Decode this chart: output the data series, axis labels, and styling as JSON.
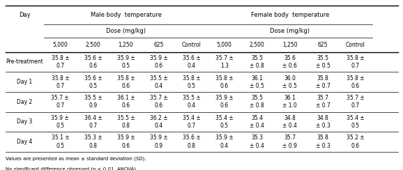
{
  "title": "",
  "col_header_row1": [
    "Day",
    "Male body temperature",
    "",
    "",
    "",
    "",
    "Female body temperature",
    "",
    "",
    "",
    ""
  ],
  "col_header_row2": [
    "",
    "Dose (mg/kg)",
    "",
    "",
    "",
    "",
    "Dose (mg/kg)",
    "",
    "",
    "",
    ""
  ],
  "col_header_row3": [
    "",
    "5,000",
    "2,500",
    "1,250",
    "625",
    "Control",
    "5,000",
    "2,500",
    "1,250",
    "625",
    "Control"
  ],
  "rows": [
    {
      "label": "Pre-treatment",
      "values": [
        "35.8 ±\n0.7",
        "35.6 ±\n0.6",
        "35.9 ±\n0.5",
        "35.9 ±\n0.6",
        "35.6 ±\n0.4",
        "35.7 ±\n1.3",
        "35.5\n± 0.8",
        "35.6\n± 0.6",
        "35.5\n± 0.5",
        "35.8 ±\n0.7"
      ]
    },
    {
      "label": "Day 1",
      "values": [
        "35.8 ±\n0.7",
        "35.6 ±\n0.5",
        "35.8 ±\n0.6",
        "35.5 ±\n0.4",
        "35.8 ±\n0.5",
        "35.8 ±\n0.6",
        "36.1\n± 0.5",
        "36.0\n± 0.5",
        "35.8\n± 0.7",
        "35.8 ±\n0.6"
      ]
    },
    {
      "label": "Day 2",
      "values": [
        "35.7 ±\n0.7",
        "35.5 ±\n0.9",
        "36.1 ±\n0.6",
        "35.7 ±\n0.6",
        "35.5 ±\n0.4",
        "35.9 ±\n0.6",
        "35.5\n± 0.8",
        "36.1\n± 1.0",
        "35.7\n± 0.7",
        "35.7 ±\n0.7"
      ]
    },
    {
      "label": "Day 3",
      "values": [
        "35.9 ±\n0.5",
        "36.4 ±\n0.7",
        "35.5 ±\n0.8",
        "36.2 ±\n0.4",
        "35.4 ±\n0.7",
        "35.4 ±\n0.5",
        "35.4\n± 0.4",
        "34.8\n± 0.4",
        "34.8\n± 0.3",
        "35.4 ±\n0.5"
      ]
    },
    {
      "label": "Day 4",
      "values": [
        "35.1 ±\n0.5",
        "35.3 ±\n0.8",
        "35.9 ±\n0.6",
        "35.9 ±\n0.9",
        "35.6 ±\n0.8",
        "35.9 ±\n0.4",
        "35.3\n± 0.4",
        "35.7\n± 0.9",
        "35.8\n± 0.3",
        "35.2 ±\n0.6"
      ]
    }
  ],
  "footnote1": "Values are presented as mean ± standard deviation (SD).",
  "footnote2": "No significant difference observed (p < 0.01, ANOVA)"
}
